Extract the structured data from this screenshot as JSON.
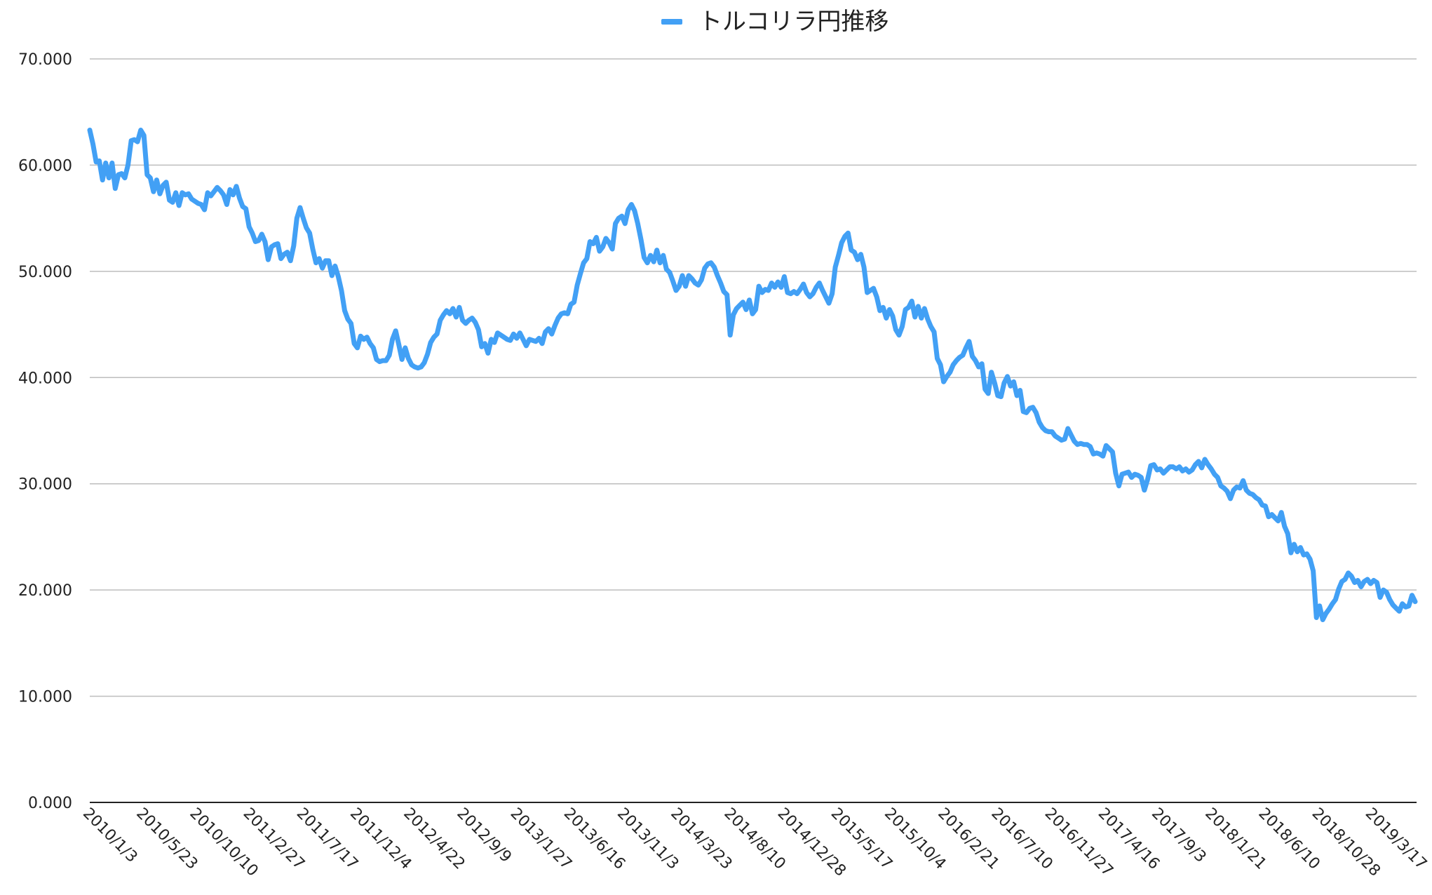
{
  "chart_data": {
    "type": "line",
    "title": "",
    "xlabel": "",
    "ylabel": "",
    "ylim": [
      0,
      70
    ],
    "y_ticks": [
      "0.000",
      "10.000",
      "20.000",
      "30.000",
      "40.000",
      "50.000",
      "60.000",
      "70.000"
    ],
    "x_tick_labels": [
      "2010/1/3",
      "2010/5/23",
      "2010/10/10",
      "2011/2/27",
      "2011/7/17",
      "2011/12/4",
      "2012/4/22",
      "2012/9/9",
      "2013/1/27",
      "2013/6/16",
      "2013/11/3",
      "2014/3/23",
      "2014/8/10",
      "2014/12/28",
      "2015/5/17",
      "2015/10/4",
      "2016/2/21",
      "2016/7/10",
      "2016/11/27",
      "2017/4/16",
      "2017/9/3",
      "2018/1/21",
      "2018/6/10",
      "2018/10/28",
      "2019/3/17"
    ],
    "legend": {
      "position": "top-center",
      "entries": [
        "トルコリラ円推移"
      ]
    },
    "grid": true,
    "line_color": "#42A0F5",
    "series": [
      {
        "name": "トルコリラ円推移",
        "values": [
          63.3,
          62.0,
          60.3,
          60.4,
          58.6,
          60.2,
          58.8,
          60.2,
          57.8,
          59.1,
          59.2,
          58.8,
          60.0,
          62.3,
          62.4,
          62.2,
          63.3,
          62.8,
          59.1,
          58.8,
          57.5,
          58.6,
          57.3,
          58.1,
          58.4,
          56.7,
          56.5,
          57.4,
          56.2,
          57.4,
          57.2,
          57.3,
          56.8,
          56.6,
          56.4,
          56.3,
          55.8,
          57.4,
          57.1,
          57.5,
          57.9,
          57.6,
          57.2,
          56.3,
          57.7,
          57.2,
          58.0,
          56.9,
          56.1,
          55.9,
          54.2,
          53.6,
          52.8,
          52.9,
          53.5,
          52.8,
          51.1,
          52.3,
          52.5,
          52.6,
          51.2,
          51.6,
          51.8,
          51.0,
          52.4,
          55.0,
          56.0,
          55.0,
          54.1,
          53.6,
          52.1,
          50.8,
          51.2,
          50.3,
          51.0,
          51.0,
          49.6,
          50.5,
          49.5,
          48.2,
          46.3,
          45.5,
          45.1,
          43.2,
          42.8,
          43.9,
          43.6,
          43.8,
          43.2,
          42.8,
          41.7,
          41.5,
          41.6,
          41.6,
          42.1,
          43.6,
          44.4,
          43.1,
          41.7,
          42.8,
          41.8,
          41.2,
          41.0,
          40.9,
          41.0,
          41.4,
          42.2,
          43.3,
          43.8,
          44.1,
          45.4,
          45.9,
          46.3,
          46.0,
          46.5,
          45.7,
          46.6,
          45.4,
          45.1,
          45.4,
          45.6,
          45.2,
          44.5,
          42.9,
          43.2,
          42.3,
          43.6,
          43.3,
          44.2,
          44.0,
          43.8,
          43.6,
          43.5,
          44.1,
          43.7,
          44.2,
          43.6,
          43.0,
          43.6,
          43.5,
          43.4,
          43.7,
          43.2,
          44.3,
          44.6,
          44.1,
          44.9,
          45.6,
          46.0,
          46.1,
          46.0,
          46.9,
          47.1,
          48.7,
          49.8,
          50.8,
          51.2,
          52.8,
          52.6,
          53.2,
          51.9,
          52.3,
          53.1,
          52.7,
          52.1,
          54.5,
          55.0,
          55.2,
          54.5,
          55.8,
          56.3,
          55.7,
          54.5,
          53.0,
          51.3,
          50.8,
          51.5,
          50.9,
          52.0,
          50.8,
          51.5,
          50.2,
          49.9,
          49.1,
          48.2,
          48.6,
          49.6,
          48.6,
          49.6,
          49.3,
          48.9,
          48.7,
          49.2,
          50.3,
          50.7,
          50.8,
          50.4,
          49.6,
          48.9,
          48.1,
          47.8,
          44.0,
          45.9,
          46.5,
          46.8,
          47.1,
          46.4,
          47.3,
          46.0,
          46.4,
          48.6,
          48.0,
          48.3,
          48.2,
          48.9,
          48.5,
          49.0,
          48.5,
          49.5,
          48.0,
          47.9,
          48.1,
          47.9,
          48.3,
          48.8,
          48.0,
          47.6,
          47.9,
          48.5,
          48.9,
          48.2,
          47.6,
          47.0,
          47.9,
          50.4,
          51.5,
          52.7,
          53.3,
          53.6,
          52.0,
          51.8,
          51.1,
          51.6,
          50.4,
          48.0,
          48.2,
          48.4,
          47.6,
          46.3,
          46.6,
          45.6,
          46.4,
          45.8,
          44.5,
          44.0,
          44.8,
          46.4,
          46.6,
          47.2,
          45.7,
          46.7,
          45.6,
          46.5,
          45.5,
          44.8,
          44.3,
          41.8,
          41.2,
          39.6,
          40.1,
          40.5,
          41.2,
          41.6,
          41.9,
          42.1,
          42.8,
          43.4,
          42.0,
          41.6,
          41.0,
          41.3,
          38.9,
          38.5,
          40.5,
          39.5,
          38.3,
          38.2,
          39.5,
          40.1,
          39.2,
          39.6,
          38.3,
          38.8,
          36.8,
          36.7,
          37.1,
          37.2,
          36.7,
          35.8,
          35.3,
          35.0,
          34.9,
          34.9,
          34.5,
          34.3,
          34.1,
          34.2,
          35.2,
          34.6,
          34.0,
          33.7,
          33.8,
          33.7,
          33.7,
          33.5,
          32.8,
          32.9,
          32.8,
          32.6,
          33.6,
          33.3,
          33.0,
          31.0,
          29.8,
          30.9,
          31.0,
          31.1,
          30.6,
          30.9,
          30.8,
          30.6,
          29.4,
          30.4,
          31.7,
          31.8,
          31.3,
          31.4,
          31.0,
          31.3,
          31.6,
          31.6,
          31.4,
          31.6,
          31.2,
          31.4,
          31.1,
          31.3,
          31.8,
          32.1,
          31.5,
          32.3,
          31.8,
          31.4,
          30.9,
          30.6,
          29.8,
          29.6,
          29.3,
          28.6,
          29.4,
          29.7,
          29.6,
          30.3,
          29.4,
          29.1,
          29.0,
          28.7,
          28.5,
          28.0,
          27.9,
          26.9,
          27.1,
          26.8,
          26.5,
          27.3,
          26.0,
          25.3,
          23.5,
          24.3,
          23.6,
          24.0,
          23.3,
          23.4,
          22.9,
          21.8,
          17.4,
          18.5,
          17.2,
          17.8,
          18.2,
          18.7,
          19.1,
          20.1,
          20.8,
          21.0,
          21.6,
          21.3,
          20.7,
          20.9,
          20.3,
          20.8,
          21.0,
          20.6,
          20.9,
          20.7,
          19.3,
          20.0,
          19.8,
          19.1,
          18.6,
          18.3,
          18.0,
          18.7,
          18.4,
          18.5,
          19.5,
          18.9
        ]
      }
    ]
  }
}
